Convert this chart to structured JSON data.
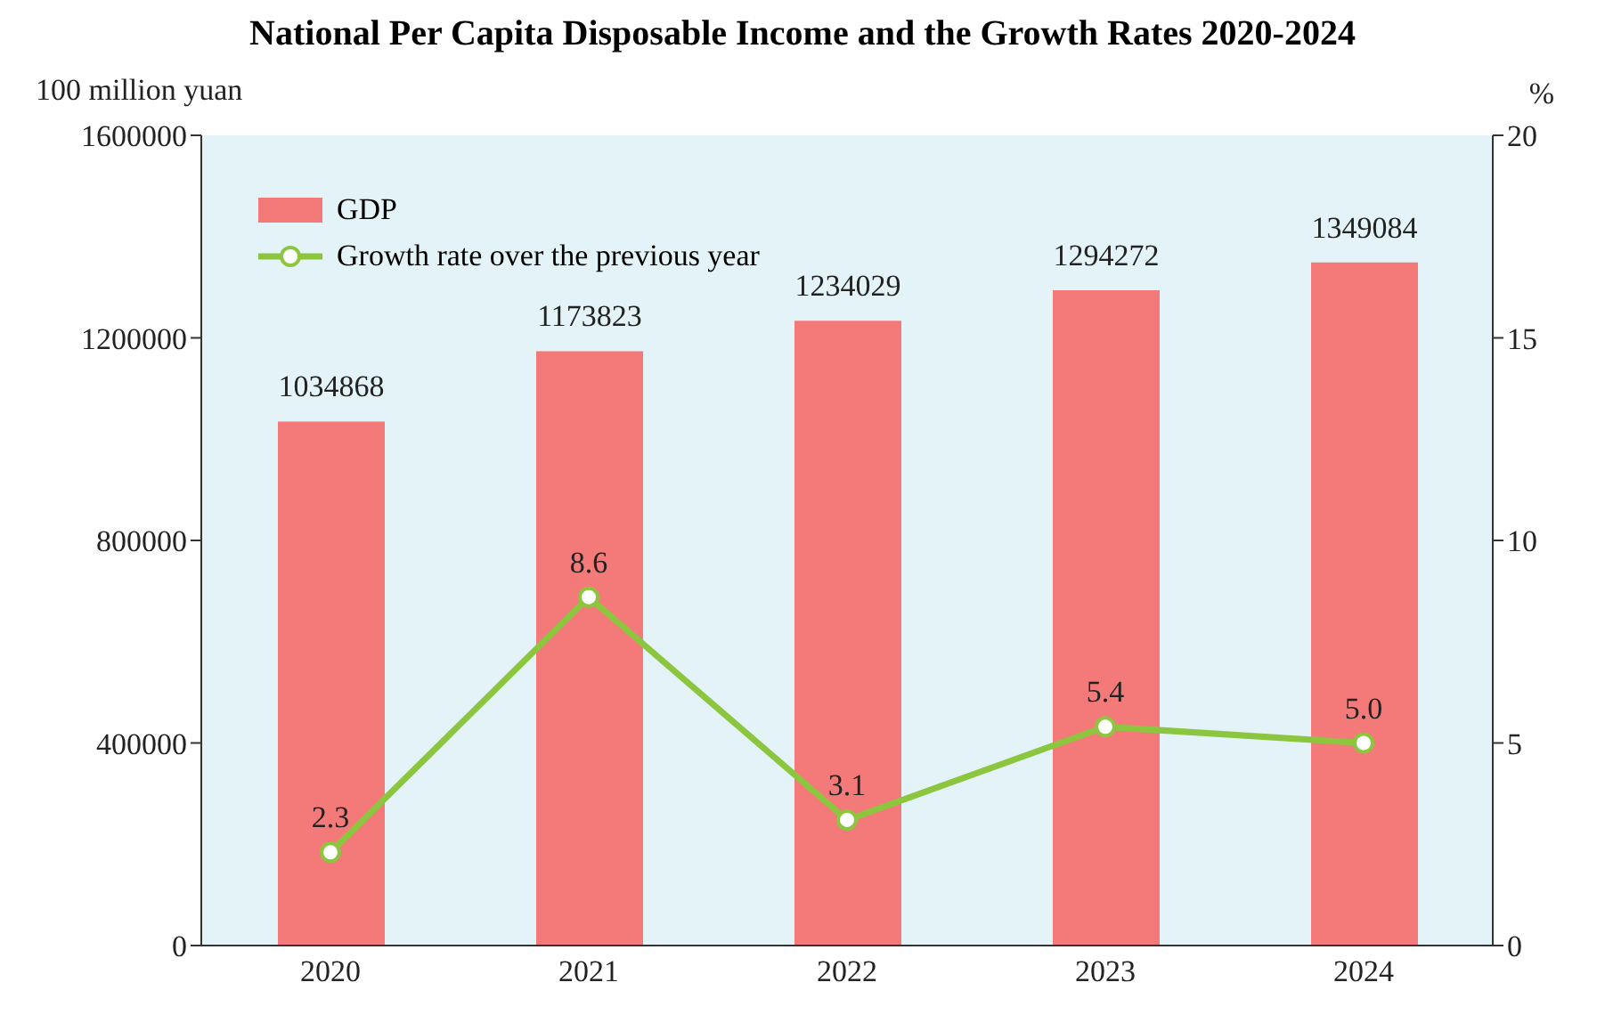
{
  "chart_data": {
    "type": "bar",
    "title": "National Per Capita Disposable Income and the Growth Rates 2020-2024",
    "ylabel": "100 million yuan",
    "y2label": "%",
    "categories": [
      "2020",
      "2021",
      "2022",
      "2023",
      "2024"
    ],
    "series": [
      {
        "name": "GDP",
        "color": "#f47a7a",
        "values": [
          1034868,
          1173823,
          1234029,
          1294272,
          1349084
        ],
        "value_labels": [
          "1034868",
          "1173823",
          "1234029",
          "1294272",
          "1349084"
        ]
      },
      {
        "name": "Growth rate over the previous year",
        "type": "line",
        "axis": "y2",
        "color": "#8cc63f",
        "marker": "circle",
        "values": [
          2.3,
          8.6,
          3.1,
          5.4,
          5.0
        ],
        "value_labels": [
          "2.3",
          "8.6",
          "3.1",
          "5.4",
          "5.0"
        ]
      }
    ],
    "ylim": [
      0,
      1600000
    ],
    "yticks": [
      0,
      400000,
      800000,
      1200000,
      1600000
    ],
    "y2lim": [
      0,
      20
    ],
    "y2ticks": [
      0,
      5,
      10,
      15,
      20
    ],
    "legend": "top left"
  }
}
